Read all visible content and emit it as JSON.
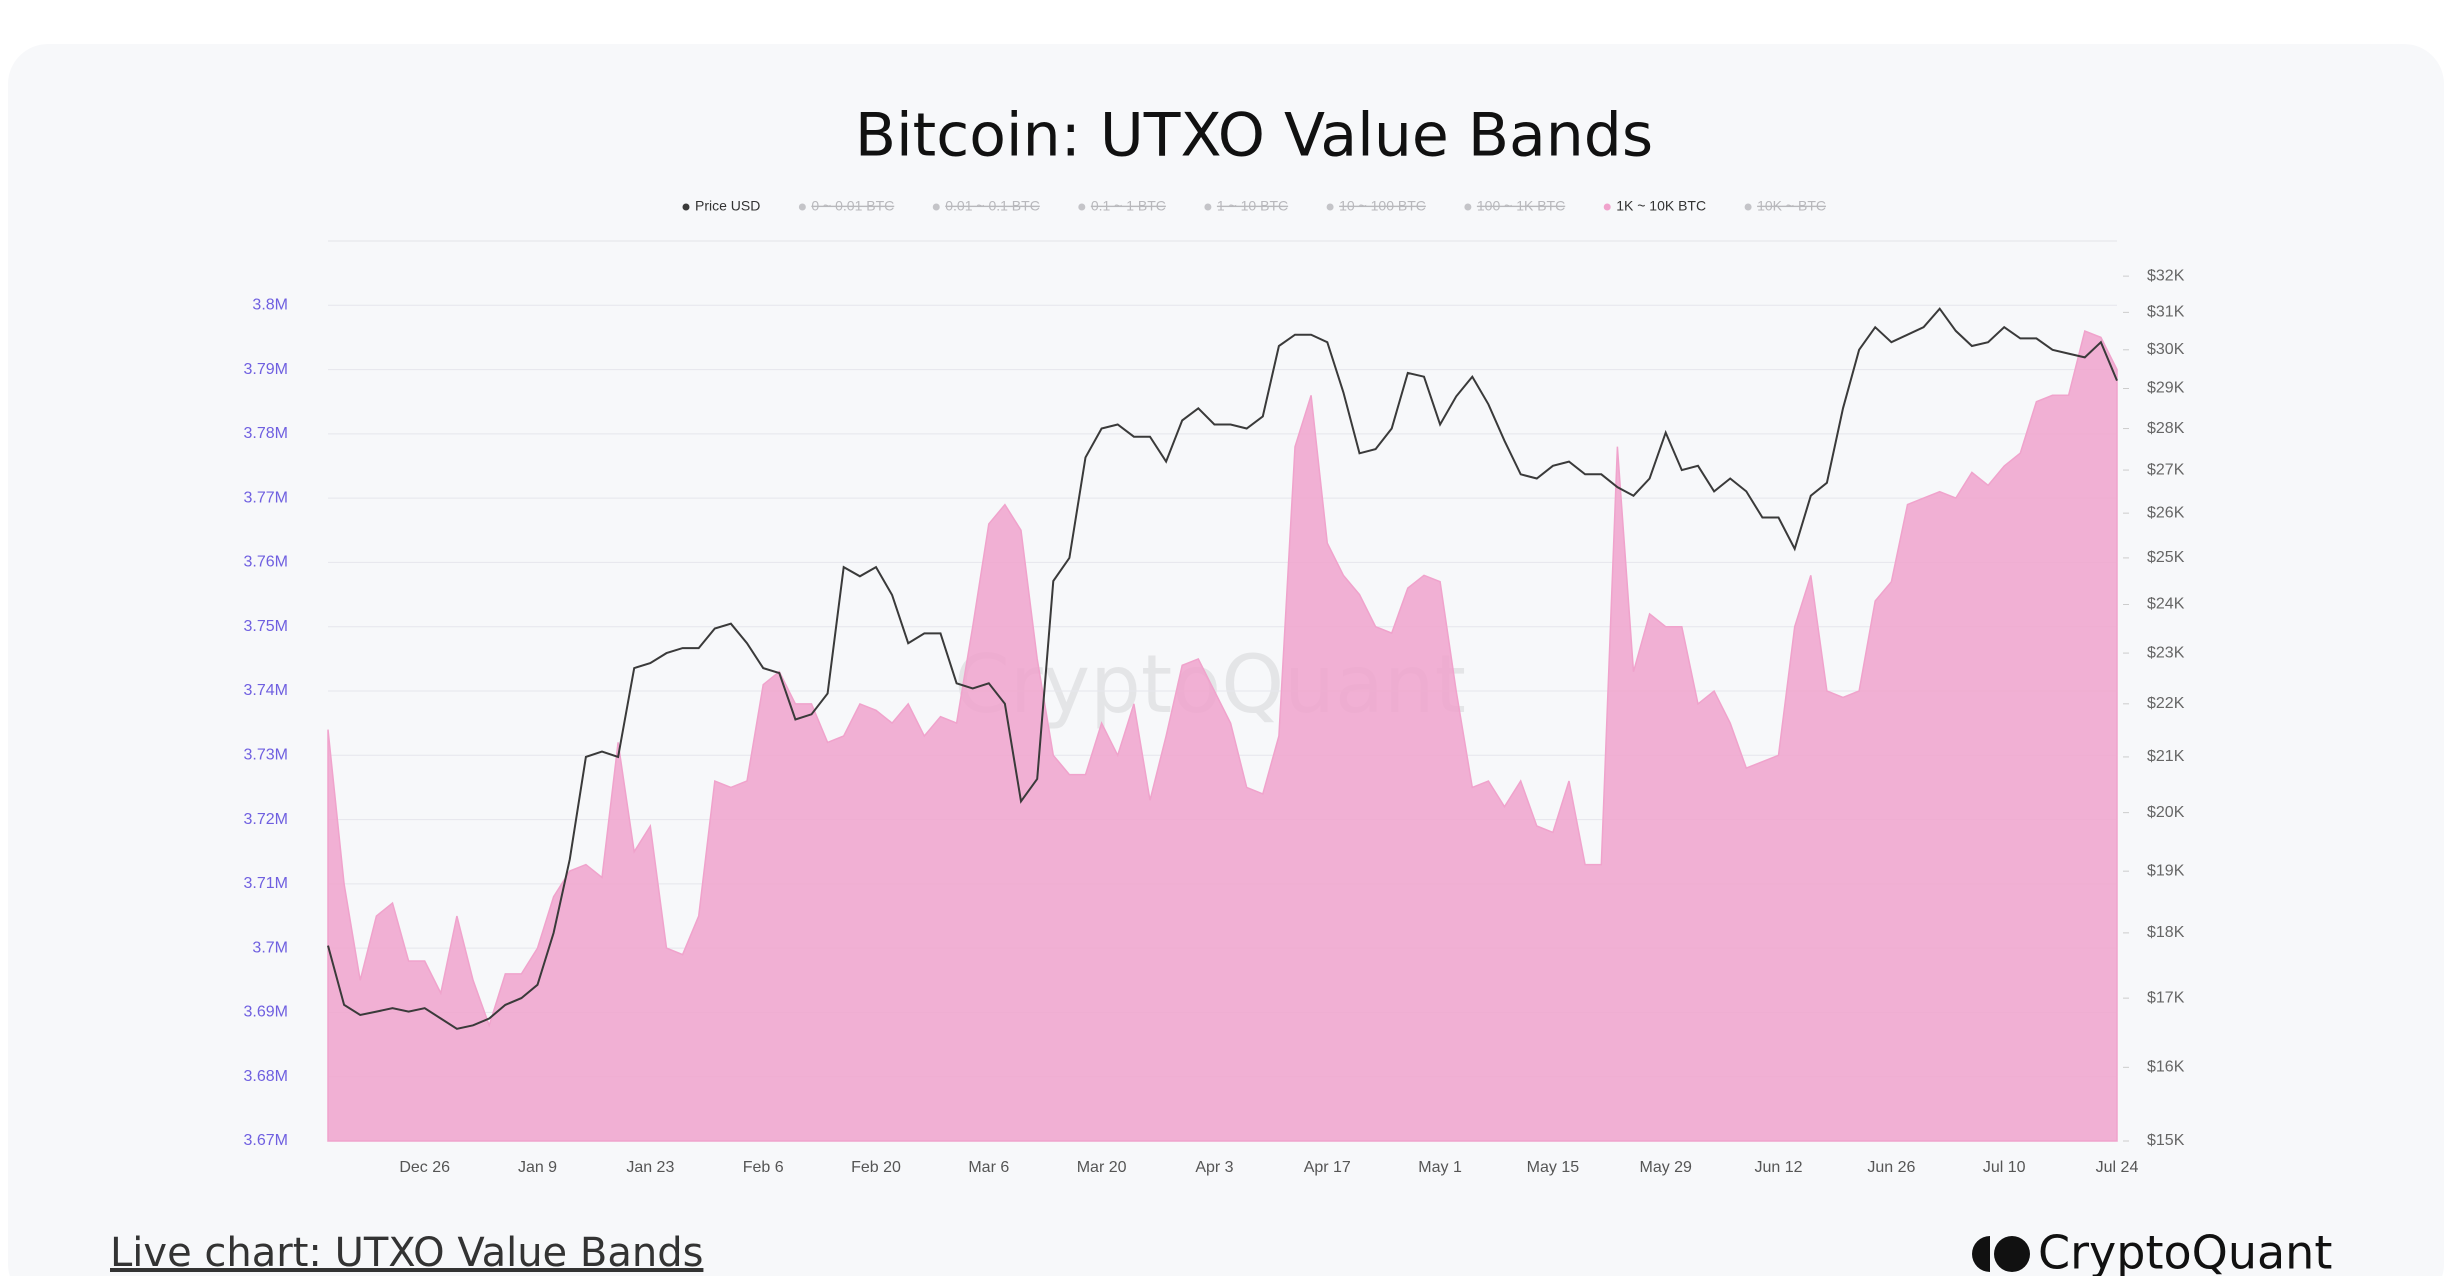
{
  "chart_data": {
    "type": "area-line",
    "title": "Bitcoin: UTXO Value Bands",
    "watermark": "CryptoQuant",
    "categories": [
      null,
      null,
      null,
      null,
      null,
      null,
      "Dec 26",
      null,
      null,
      null,
      null,
      null,
      null,
      "Jan 9",
      null,
      null,
      null,
      null,
      null,
      null,
      "Jan 23",
      null,
      null,
      null,
      null,
      null,
      null,
      "Feb 6",
      null,
      null,
      null,
      null,
      null,
      null,
      "Feb 20",
      null,
      null,
      null,
      null,
      null,
      null,
      "Mar 6",
      null,
      null,
      null,
      null,
      null,
      null,
      "Mar 20",
      null,
      null,
      null,
      null,
      null,
      null,
      "Apr 3",
      null,
      null,
      null,
      null,
      null,
      null,
      "Apr 17",
      null,
      null,
      null,
      null,
      null,
      null,
      "May 1",
      null,
      null,
      null,
      null,
      null,
      null,
      "May 15",
      null,
      null,
      null,
      null,
      null,
      null,
      "May 29",
      null,
      null,
      null,
      null,
      null,
      null,
      "Jun 12",
      null,
      null,
      null,
      null,
      null,
      null,
      "Jun 26",
      null,
      null,
      null,
      null,
      null,
      null,
      "Jul 10",
      null,
      null,
      null,
      null,
      null,
      null,
      "Jul 24"
    ],
    "series": [
      {
        "name": "Price USD",
        "color": "#3a3a3a",
        "axis": "y2",
        "values": [
          17800,
          16900,
          16750,
          16800,
          16850,
          16800,
          16850,
          16700,
          16550,
          16600,
          16700,
          16900,
          17000,
          17200,
          18000,
          19200,
          21000,
          21100,
          21000,
          22700,
          22800,
          23000,
          23100,
          23100,
          23500,
          23600,
          23200,
          22700,
          22600,
          21700,
          21800,
          22200,
          24800,
          24600,
          24800,
          24200,
          23200,
          23400,
          23400,
          22400,
          22300,
          22400,
          22000,
          20200,
          20600,
          24500,
          25000,
          27300,
          28000,
          28100,
          27800,
          27800,
          27200,
          28200,
          28500,
          28100,
          28100,
          28000,
          28300,
          30100,
          30400,
          30400,
          30200,
          28900,
          27400,
          27500,
          28000,
          29400,
          29300,
          28100,
          28800,
          29300,
          28600,
          27700,
          26900,
          26800,
          27100,
          27200,
          26900,
          26900,
          26600,
          26400,
          26800,
          27900,
          27000,
          27100,
          26500,
          26800,
          26500,
          25900,
          25900,
          25200,
          26400,
          26700,
          28500,
          30000,
          30600,
          30200,
          30400,
          30600,
          31100,
          30500,
          30100,
          30200,
          30600,
          30300,
          30300,
          30000,
          29900,
          29800,
          30200,
          29200
        ]
      },
      {
        "name": "1K ~ 10K BTC",
        "color": "#f0a3cc",
        "axis": "y",
        "values": [
          3734000,
          3710000,
          3695000,
          3705000,
          3707000,
          3698000,
          3698000,
          3693000,
          3705000,
          3695000,
          3688000,
          3696000,
          3696000,
          3700000,
          3708000,
          3712000,
          3713000,
          3711000,
          3732000,
          3715000,
          3719000,
          3700000,
          3699000,
          3705000,
          3726000,
          3725000,
          3726000,
          3741000,
          3743000,
          3738000,
          3738000,
          3732000,
          3733000,
          3738000,
          3737000,
          3735000,
          3738000,
          3733000,
          3736000,
          3735000,
          3750000,
          3766000,
          3769000,
          3765000,
          3745000,
          3730000,
          3727000,
          3727000,
          3735000,
          3730000,
          3738000,
          3723000,
          3733000,
          3744000,
          3745000,
          3740000,
          3735000,
          3725000,
          3724000,
          3733000,
          3778000,
          3786000,
          3763000,
          3758000,
          3755000,
          3750000,
          3749000,
          3756000,
          3758000,
          3757000,
          3740000,
          3725000,
          3726000,
          3722000,
          3726000,
          3719000,
          3718000,
          3726000,
          3713000,
          3713000,
          3778000,
          3743000,
          3752000,
          3750000,
          3750000,
          3738000,
          3740000,
          3735000,
          3728000,
          3729000,
          3730000,
          3750000,
          3758000,
          3740000,
          3739000,
          3740000,
          3754000,
          3757000,
          3769000,
          3770000,
          3771000,
          3770000,
          3774000,
          3772000,
          3775000,
          3777000,
          3785000,
          3786000,
          3786000,
          3796000,
          3795000,
          3790000
        ]
      }
    ],
    "hidden_series": [
      {
        "name": "0 ~ 0.01 BTC"
      },
      {
        "name": "0.01 ~ 0.1 BTC"
      },
      {
        "name": "0.1 ~ 1 BTC"
      },
      {
        "name": "1 ~ 10 BTC"
      },
      {
        "name": "10 ~ 100 BTC"
      },
      {
        "name": "100 ~ 1K BTC"
      },
      {
        "name": "10K ~ BTC"
      }
    ],
    "legend_order": [
      "Price USD",
      "0 ~ 0.01 BTC",
      "0.01 ~ 0.1 BTC",
      "0.1 ~ 1 BTC",
      "1 ~ 10 BTC",
      "10 ~ 100 BTC",
      "100 ~ 1K BTC",
      "1K ~ 10K BTC",
      "10K ~ BTC"
    ],
    "ylim": [
      3670000,
      3810000
    ],
    "yticks": [
      {
        "value": 3670000,
        "label": "3.67M"
      },
      {
        "value": 3680000,
        "label": "3.68M"
      },
      {
        "value": 3690000,
        "label": "3.69M"
      },
      {
        "value": 3700000,
        "label": "3.7M"
      },
      {
        "value": 3710000,
        "label": "3.71M"
      },
      {
        "value": 3720000,
        "label": "3.72M"
      },
      {
        "value": 3730000,
        "label": "3.73M"
      },
      {
        "value": 3740000,
        "label": "3.74M"
      },
      {
        "value": 3750000,
        "label": "3.75M"
      },
      {
        "value": 3760000,
        "label": "3.76M"
      },
      {
        "value": 3770000,
        "label": "3.77M"
      },
      {
        "value": 3780000,
        "label": "3.78M"
      },
      {
        "value": 3790000,
        "label": "3.79M"
      },
      {
        "value": 3800000,
        "label": "3.8M"
      }
    ],
    "y2lim": [
      15000,
      33000
    ],
    "y2scale": "log",
    "y2ticks": [
      {
        "value": 15000,
        "label": "$15K"
      },
      {
        "value": 16000,
        "label": "$16K"
      },
      {
        "value": 17000,
        "label": "$17K"
      },
      {
        "value": 18000,
        "label": "$18K"
      },
      {
        "value": 19000,
        "label": "$19K"
      },
      {
        "value": 20000,
        "label": "$20K"
      },
      {
        "value": 21000,
        "label": "$21K"
      },
      {
        "value": 22000,
        "label": "$22K"
      },
      {
        "value": 23000,
        "label": "$23K"
      },
      {
        "value": 24000,
        "label": "$24K"
      },
      {
        "value": 25000,
        "label": "$25K"
      },
      {
        "value": 26000,
        "label": "$26K"
      },
      {
        "value": 27000,
        "label": "$27K"
      },
      {
        "value": 28000,
        "label": "$28K"
      },
      {
        "value": 29000,
        "label": "$29K"
      },
      {
        "value": 30000,
        "label": "$30K"
      },
      {
        "value": 31000,
        "label": "$31K"
      },
      {
        "value": 32000,
        "label": "$32K"
      }
    ],
    "grid": true
  },
  "footer": {
    "link": "Live chart: UTXO Value Bands",
    "brand": "CryptoQuant"
  }
}
